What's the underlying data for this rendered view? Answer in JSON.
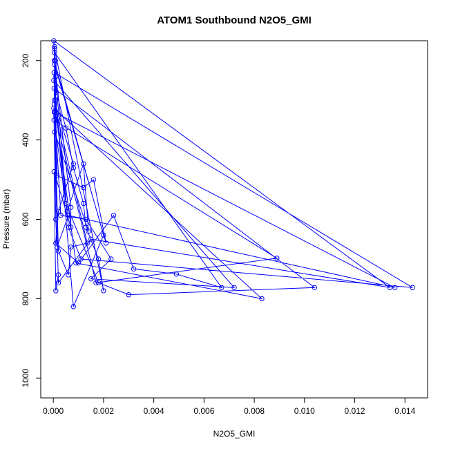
{
  "chart_data": {
    "type": "line",
    "title": "ATOM1 Southbound N2O5_GMI",
    "xlabel": "N2O5_GMI",
    "ylabel": "Pressure (mbar)",
    "xlim": [
      -0.0005,
      0.0149
    ],
    "ylim": [
      1050,
      150
    ],
    "y_reversed": true,
    "x_ticks": [
      {
        "value": 0.0,
        "label": "0.000"
      },
      {
        "value": 0.002,
        "label": "0.002"
      },
      {
        "value": 0.004,
        "label": "0.004"
      },
      {
        "value": 0.006,
        "label": "0.006"
      },
      {
        "value": 0.008,
        "label": "0.008"
      },
      {
        "value": 0.01,
        "label": "0.010"
      },
      {
        "value": 0.012,
        "label": "0.012"
      },
      {
        "value": 0.014,
        "label": "0.014"
      }
    ],
    "y_ticks": [
      {
        "value": 200,
        "label": "200"
      },
      {
        "value": 400,
        "label": "400"
      },
      {
        "value": 600,
        "label": "600"
      },
      {
        "value": 800,
        "label": "800"
      },
      {
        "value": 1000,
        "label": "1000"
      }
    ],
    "grid": false,
    "series_color": "#0000ff",
    "series": [
      {
        "x": [
          5e-05,
          8e-05,
          0.0001,
          0.00012,
          0.0005,
          0.0008,
          0.0012,
          0.0013,
          0.0018,
          0.002,
          5e-05,
          4e-05,
          0.0008,
          0.0002,
          0.0001,
          0.001,
          0.0024,
          0.0032,
          0.0049,
          0.0067,
          5e-05,
          0.0001,
          0.00015,
          0.0012,
          0.0016,
          0.0021,
          5e-05,
          0.0006,
          0.0011,
          0.0143,
          3e-05,
          6e-05,
          0.0003,
          0.0013,
          0.0023,
          0.0015,
          0.0072,
          2e-05,
          0.0005,
          0.0018,
          0.003,
          0.0104,
          3e-05,
          0.0002,
          0.0006,
          0.0007,
          0.00135,
          5e-05,
          0.0009,
          0.0083,
          2e-05,
          0.0001,
          0.00015,
          0.0006,
          0.0136,
          4e-05,
          0.0017,
          0.0089,
          3e-05,
          0.00055,
          0.0012,
          0.0014,
          5e-05,
          0.0002,
          0.0015,
          0.0134,
          2e-05,
          0.0001,
          0.0008,
          0.002,
          4e-05,
          0.0007,
          0.0007,
          3e-05,
          0.0001,
          0.0002
        ],
        "y": [
          165,
          200,
          240,
          280,
          370,
          470,
          560,
          620,
          700,
          780,
          170,
          300,
          460,
          580,
          660,
          710,
          590,
          725,
          738,
          772,
          180,
          340,
          490,
          520,
          500,
          660,
          210,
          620,
          700,
          772,
          230,
          330,
          590,
          600,
          700,
          750,
          772,
          250,
          560,
          760,
          790,
          772,
          270,
          680,
          740,
          670,
          660,
          310,
          710,
          800,
          320,
          600,
          670,
          590,
          772,
          330,
          760,
          698,
          350,
          580,
          460,
          630,
          380,
          760,
          650,
          772,
          150,
          300,
          820,
          640,
          200,
          570,
          620,
          480,
          780,
          740
        ]
      }
    ]
  }
}
